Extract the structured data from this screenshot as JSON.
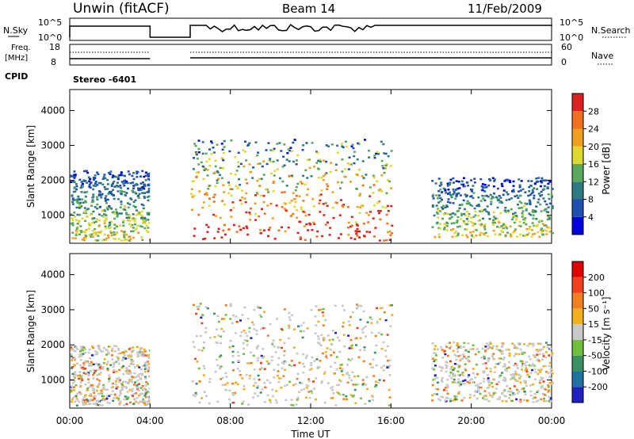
{
  "header": {
    "station": "Unwin (fitACF)",
    "beam": "Beam 14",
    "date": "11/Feb/2009"
  },
  "status_panels": {
    "nsky_label": "N.Sky",
    "nsky_ticks": [
      "10^5",
      "10^0"
    ],
    "nsearch_label": "N.Search",
    "nsearch_ticks": [
      "10^5",
      "10^0"
    ],
    "freq_label": "Freq.",
    "freq_unit": "[MHz]",
    "freq_ticks": [
      "18",
      "8"
    ],
    "nave_label": "Nave",
    "nave_ticks": [
      "60",
      "0"
    ],
    "cpid_label": "CPID",
    "cpid_value": "Stereo -6401"
  },
  "chart_data": [
    {
      "type": "heatmap",
      "name": "power",
      "ylabel": "Slant Range [km]",
      "xlabel": "",
      "x_ticks": [
        "00:00",
        "04:00",
        "08:00",
        "12:00",
        "16:00",
        "20:00",
        "00:00"
      ],
      "x_hours": [
        0,
        4,
        8,
        12,
        16,
        20,
        24
      ],
      "y_ticks": [
        1000,
        2000,
        3000,
        4000
      ],
      "ylim": [
        200,
        4600
      ],
      "data_gap_hours": [
        4.0,
        6.0
      ],
      "colorbar": {
        "label": "Power [dB]",
        "ticks": [
          "28",
          "24",
          "20",
          "16",
          "12",
          "8",
          "4"
        ],
        "colors": [
          "#0000e0",
          "#2050b0",
          "#2f7a80",
          "#5aa860",
          "#e0d830",
          "#f0a020",
          "#f07020",
          "#e02020"
        ]
      },
      "regions": [
        {
          "x": [
            0.0,
            4.0
          ],
          "y": [
            300,
            2300
          ],
          "band": "low-mid"
        },
        {
          "x": [
            6.0,
            16.0
          ],
          "y": [
            300,
            3200
          ],
          "band": "mixed-high"
        },
        {
          "x": [
            18.0,
            24.0
          ],
          "y": [
            400,
            2100
          ],
          "band": "mid"
        }
      ]
    },
    {
      "type": "heatmap",
      "name": "velocity",
      "ylabel": "Slant Range [km]",
      "xlabel": "Time UT",
      "x_ticks": [
        "00:00",
        "04:00",
        "08:00",
        "12:00",
        "16:00",
        "20:00",
        "00:00"
      ],
      "x_hours": [
        0,
        4,
        8,
        12,
        16,
        20,
        24
      ],
      "y_ticks": [
        1000,
        2000,
        3000,
        4000
      ],
      "ylim": [
        200,
        4600
      ],
      "data_gap_hours": [
        4.0,
        6.0
      ],
      "colorbar": {
        "label": "Velocity [m s⁻¹]",
        "ticks": [
          "200",
          "100",
          "50",
          "15",
          "-15",
          "-50",
          "-100",
          "-200"
        ],
        "colors": [
          "#2020c0",
          "#2070a0",
          "#3a9060",
          "#70c040",
          "#c8c8c8",
          "#f0b020",
          "#f08020",
          "#f04020",
          "#e00000"
        ]
      },
      "regions": [
        {
          "x": [
            0.0,
            4.0
          ],
          "y": [
            300,
            2000
          ],
          "band": "ground"
        },
        {
          "x": [
            6.0,
            16.0
          ],
          "y": [
            300,
            3200
          ],
          "band": "mixed"
        },
        {
          "x": [
            18.0,
            24.0
          ],
          "y": [
            400,
            2100
          ],
          "band": "ground"
        }
      ]
    }
  ]
}
